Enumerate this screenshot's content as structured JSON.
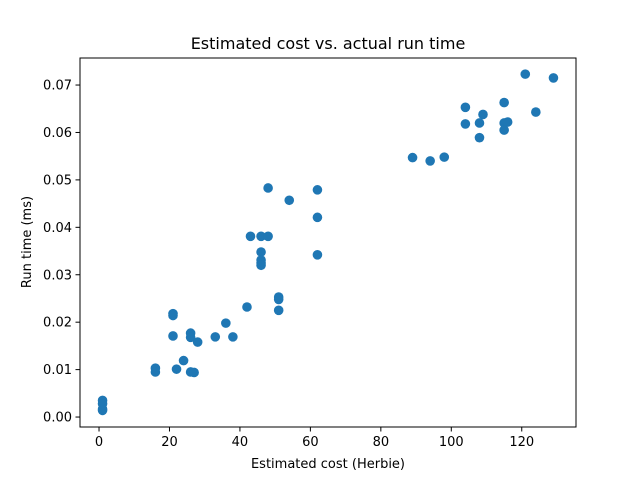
{
  "chart_data": {
    "type": "scatter",
    "title": "Estimated cost vs. actual run time",
    "xlabel": "Estimated cost (Herbie)",
    "ylabel": "Run time (ms)",
    "xlim": [
      -5.4,
      135.4
    ],
    "ylim": [
      -0.0021,
      0.0757
    ],
    "xticks": [
      0,
      20,
      40,
      60,
      80,
      100,
      120
    ],
    "xtick_labels": [
      "0",
      "20",
      "40",
      "60",
      "80",
      "100",
      "120"
    ],
    "yticks": [
      0.0,
      0.01,
      0.02,
      0.03,
      0.04,
      0.05,
      0.06,
      0.07
    ],
    "ytick_labels": [
      "0.00",
      "0.01",
      "0.02",
      "0.03",
      "0.04",
      "0.05",
      "0.06",
      "0.07"
    ],
    "grid": false,
    "legend": "none",
    "marker_color": "#1f77b4",
    "series": [
      {
        "x": [
          1,
          1,
          1,
          1,
          16,
          16,
          21,
          21,
          21,
          22,
          24,
          26,
          26,
          26,
          27,
          28,
          33,
          36,
          38,
          42,
          43,
          46,
          46,
          46,
          46,
          46,
          48,
          48,
          51,
          51,
          51,
          54,
          62,
          62,
          62,
          89,
          94,
          98,
          104,
          104,
          108,
          108,
          109,
          115,
          115,
          115,
          116,
          121,
          124,
          129
        ],
        "y": [
          0.0035,
          0.0028,
          0.0017,
          0.0014,
          0.0103,
          0.0095,
          0.0218,
          0.0214,
          0.0171,
          0.0101,
          0.0119,
          0.0177,
          0.0168,
          0.0095,
          0.0094,
          0.0158,
          0.0169,
          0.0198,
          0.0169,
          0.0232,
          0.0381,
          0.0381,
          0.0348,
          0.0331,
          0.0325,
          0.032,
          0.0483,
          0.0381,
          0.0253,
          0.0248,
          0.0225,
          0.0457,
          0.0479,
          0.0421,
          0.0342,
          0.0547,
          0.054,
          0.0548,
          0.0653,
          0.0618,
          0.062,
          0.0589,
          0.0638,
          0.0663,
          0.062,
          0.0605,
          0.0622,
          0.0723,
          0.0643,
          0.0715
        ]
      }
    ]
  }
}
